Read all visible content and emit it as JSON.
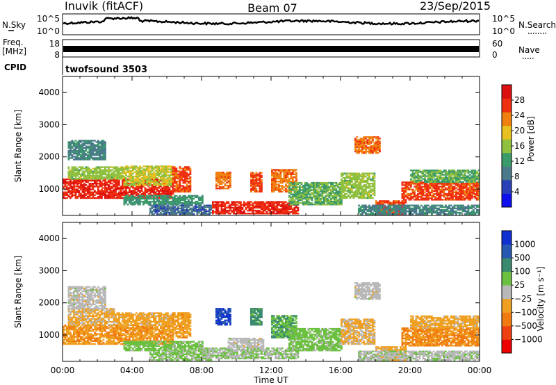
{
  "header": {
    "site": "Inuvik (fitACF)",
    "beam": "Beam 07",
    "date": "23/Sep/2015"
  },
  "top_panels": {
    "nsky_label": "N.Sky",
    "nsearch_label": "N.Search",
    "nsky_ticks": [
      "10^5",
      "10^0"
    ],
    "nsearch_ticks": [
      "10^5",
      "10^0"
    ],
    "freq_label": "Freq.",
    "freq_unit": "[MHz]",
    "freq_ticks": [
      "18",
      "8"
    ],
    "nave_label": "Nave",
    "nave_ticks": [
      "60",
      "0"
    ],
    "cpid_label": "CPID",
    "cpid_value": "twofsound 3503"
  },
  "colors": {
    "power_scale": [
      "#1010ee",
      "#2a40b8",
      "#4a7a8a",
      "#3a9a6a",
      "#90c040",
      "#e8c020",
      "#f08010",
      "#ee3010",
      "#dd1010"
    ],
    "velocity_scale": [
      "#1030d0",
      "#2858b0",
      "#3a8a70",
      "#6cc040",
      "#b8b8b8",
      "#f0a020",
      "#f07a10",
      "#ee4010",
      "#ee0000"
    ]
  },
  "chart_data": [
    {
      "type": "heatmap",
      "title": "",
      "ylabel": "Slant Range [km]",
      "xlabel": "",
      "x_ticks": [
        "00:00",
        "04:00",
        "08:00",
        "12:00",
        "16:00",
        "20:00",
        "00:00"
      ],
      "y_ticks": [
        "1000",
        "2000",
        "3000",
        "4000"
      ],
      "ylim": [
        180,
        4500
      ],
      "xlim_hours": [
        0,
        24
      ],
      "colorbar_label": "Power [dB]",
      "colorbar_ticks": [
        "4",
        "8",
        "12",
        "16",
        "20",
        "24",
        "28"
      ],
      "colorbar_range": [
        0,
        32
      ],
      "regions": [
        {
          "t0": 0.0,
          "t1": 6.3,
          "r0": 700,
          "r1": 1300,
          "v": 28
        },
        {
          "t0": 0.3,
          "t1": 3.5,
          "r0": 1300,
          "r1": 1700,
          "v": 16
        },
        {
          "t0": 0.3,
          "t1": 2.5,
          "r0": 1900,
          "r1": 2500,
          "v": 10
        },
        {
          "t0": 3.5,
          "t1": 6.3,
          "r0": 1100,
          "r1": 1700,
          "v": 18
        },
        {
          "t0": 6.3,
          "t1": 7.3,
          "r0": 900,
          "r1": 1700,
          "v": 26
        },
        {
          "t0": 3.5,
          "t1": 8.0,
          "r0": 500,
          "r1": 800,
          "v": 12
        },
        {
          "t0": 5.0,
          "t1": 8.5,
          "r0": 200,
          "r1": 500,
          "v": 8
        },
        {
          "t0": 8.6,
          "t1": 13.5,
          "r0": 220,
          "r1": 600,
          "v": 28
        },
        {
          "t0": 8.8,
          "t1": 9.6,
          "r0": 1000,
          "r1": 1500,
          "v": 24
        },
        {
          "t0": 10.8,
          "t1": 11.4,
          "r0": 900,
          "r1": 1500,
          "v": 26
        },
        {
          "t0": 12.0,
          "t1": 13.4,
          "r0": 900,
          "r1": 1600,
          "v": 24
        },
        {
          "t0": 13.0,
          "t1": 16.0,
          "r0": 500,
          "r1": 1200,
          "v": 14
        },
        {
          "t0": 16.0,
          "t1": 18.0,
          "r0": 700,
          "r1": 1500,
          "v": 16
        },
        {
          "t0": 16.8,
          "t1": 18.3,
          "r0": 2100,
          "r1": 2600,
          "v": 24
        },
        {
          "t0": 18.0,
          "t1": 19.8,
          "r0": 200,
          "r1": 650,
          "v": 26
        },
        {
          "t0": 19.5,
          "t1": 24.0,
          "r0": 650,
          "r1": 1200,
          "v": 26
        },
        {
          "t0": 20.0,
          "t1": 24.0,
          "r0": 1200,
          "r1": 1600,
          "v": 14
        },
        {
          "t0": 17.0,
          "t1": 24.0,
          "r0": 200,
          "r1": 500,
          "v": 10
        }
      ]
    },
    {
      "type": "heatmap",
      "title": "",
      "ylabel": "Slant Range [km]",
      "xlabel": "Time UT",
      "x_ticks": [
        "00:00",
        "04:00",
        "08:00",
        "12:00",
        "16:00",
        "20:00",
        "00:00"
      ],
      "y_ticks": [
        "1000",
        "2000",
        "3000",
        "4000"
      ],
      "ylim": [
        180,
        4500
      ],
      "xlim_hours": [
        0,
        24
      ],
      "colorbar_label": "Velocity [m s⁻¹]",
      "colorbar_ticks": [
        "1000",
        "500",
        "100",
        "25",
        "−25",
        "−100",
        "−500",
        "−1000"
      ],
      "colorbar_range": [
        -1000,
        1000
      ],
      "regions": [
        {
          "t0": 0.0,
          "t1": 6.3,
          "r0": 700,
          "r1": 1300,
          "v": -300
        },
        {
          "t0": 0.3,
          "t1": 3.0,
          "r0": 1300,
          "r1": 1800,
          "v": -150
        },
        {
          "t0": 0.3,
          "t1": 2.5,
          "r0": 1800,
          "r1": 2500,
          "v": 0
        },
        {
          "t0": 3.0,
          "t1": 6.3,
          "r0": 1300,
          "r1": 1700,
          "v": -200
        },
        {
          "t0": 6.3,
          "t1": 7.3,
          "r0": 900,
          "r1": 1700,
          "v": -250
        },
        {
          "t0": 3.5,
          "t1": 8.0,
          "r0": 500,
          "r1": 800,
          "v": 200
        },
        {
          "t0": 5.0,
          "t1": 8.5,
          "r0": 200,
          "r1": 500,
          "v": 150
        },
        {
          "t0": 8.0,
          "t1": 13.5,
          "r0": 250,
          "r1": 600,
          "v": 100
        },
        {
          "t0": 9.5,
          "t1": 11.5,
          "r0": 600,
          "r1": 900,
          "v": 0
        },
        {
          "t0": 8.8,
          "t1": 9.6,
          "r0": 1300,
          "r1": 1800,
          "v": 800
        },
        {
          "t0": 10.8,
          "t1": 11.4,
          "r0": 1300,
          "r1": 1800,
          "v": 400
        },
        {
          "t0": 12.0,
          "t1": 13.4,
          "r0": 900,
          "r1": 1600,
          "v": 300
        },
        {
          "t0": 13.0,
          "t1": 16.0,
          "r0": 500,
          "r1": 1200,
          "v": 200
        },
        {
          "t0": 16.0,
          "t1": 18.0,
          "r0": 700,
          "r1": 1500,
          "v": -150
        },
        {
          "t0": 16.8,
          "t1": 18.3,
          "r0": 2100,
          "r1": 2600,
          "v": 0
        },
        {
          "t0": 18.0,
          "t1": 19.8,
          "r0": 200,
          "r1": 650,
          "v": -200
        },
        {
          "t0": 19.5,
          "t1": 24.0,
          "r0": 650,
          "r1": 1200,
          "v": -350
        },
        {
          "t0": 20.0,
          "t1": 24.0,
          "r0": 1200,
          "r1": 1600,
          "v": -200
        },
        {
          "t0": 17.0,
          "t1": 24.0,
          "r0": 200,
          "r1": 500,
          "v": 50
        }
      ]
    }
  ]
}
